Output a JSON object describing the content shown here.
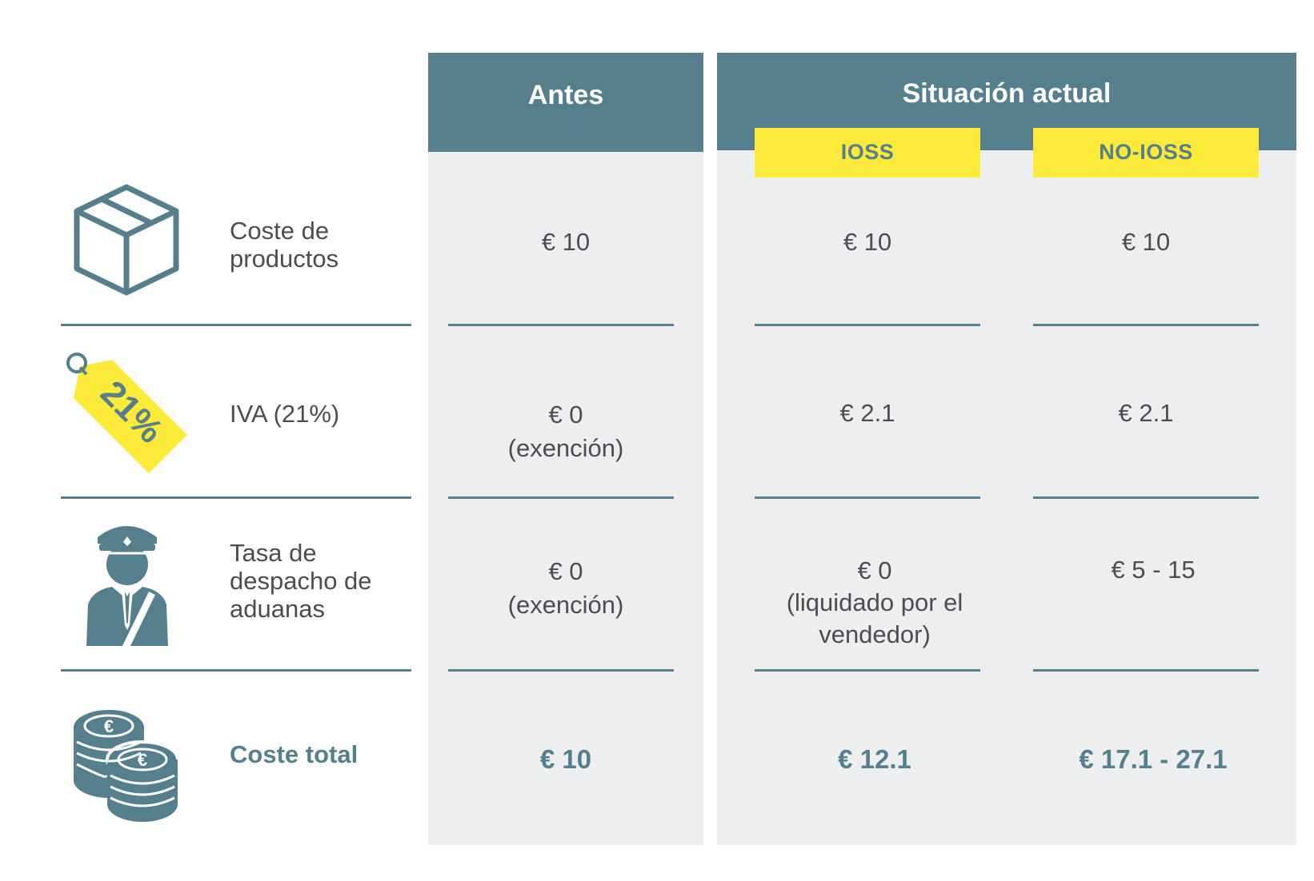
{
  "colors": {
    "teal": "#557f8c",
    "yellow": "#fcea3a",
    "column_bg": "#eceef0",
    "text": "#4a4d52"
  },
  "headers": {
    "antes": "Antes",
    "situacion": "Situación actual",
    "ioss": "IOSS",
    "no_ioss": "NO-IOSS"
  },
  "rows": [
    {
      "label": "Coste de productos",
      "icon": "box-icon",
      "antes": [
        "€ 10"
      ],
      "ioss": [
        "€ 10"
      ],
      "no_ioss": [
        "€ 10"
      ]
    },
    {
      "label": "IVA (21%)",
      "icon": "price-tag-icon",
      "tag_text": "21%",
      "antes": [
        "€ 0",
        "(exención)"
      ],
      "ioss": [
        "€ 2.1"
      ],
      "no_ioss": [
        "€ 2.1"
      ]
    },
    {
      "label": "Tasa de despacho de aduanas",
      "icon": "customs-officer-icon",
      "antes": [
        "€ 0",
        "(exención)"
      ],
      "ioss": [
        "€ 0",
        "(liquidado por el",
        "vendedor)"
      ],
      "no_ioss": [
        "€ 5 - 15"
      ]
    },
    {
      "label": "Coste total",
      "icon": "coins-euro-icon",
      "antes": [
        "€ 10"
      ],
      "ioss": [
        "€ 12.1"
      ],
      "no_ioss": [
        "€ 17.1 - 27.1"
      ]
    }
  ]
}
